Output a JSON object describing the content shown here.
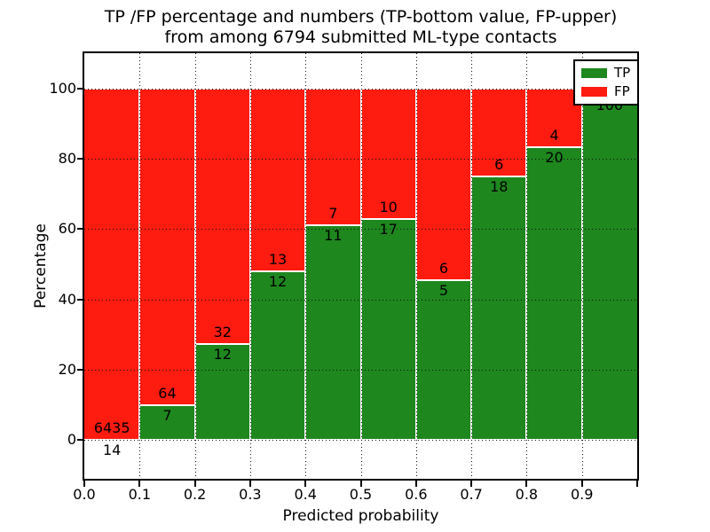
{
  "chart_data": {
    "type": "bar",
    "stacked": true,
    "title_line1": "TP /FP percentage and numbers (TP-bottom value, FP-upper)",
    "title_line2": "from among 6794 submitted ML-type contacts",
    "xlabel": "Predicted probability",
    "ylabel": "Percentage",
    "total_submitted_contacts": 6794,
    "xlim": [
      0.0,
      1.0
    ],
    "ylim": [
      -11,
      110
    ],
    "x_tick_labels": [
      "0.0",
      "0.1",
      "0.2",
      "0.3",
      "0.4",
      "0.5",
      "0.6",
      "0.7",
      "0.8",
      "0.9"
    ],
    "y_tick_values": [
      0,
      20,
      40,
      60,
      80,
      100
    ],
    "grid_style": "dotted",
    "legend_position": "upper-right",
    "colors": {
      "tp": "#1e871e",
      "fp": "#fe1b10"
    },
    "legend": {
      "entries": [
        {
          "label": "TP",
          "series": "tp"
        },
        {
          "label": "FP",
          "series": "fp"
        }
      ]
    },
    "bars": [
      {
        "bin": "0.0-0.1",
        "tp_count_label": "14",
        "fp_count_label": "6435",
        "tp_pct": 0.22,
        "fp_pct": 99.78
      },
      {
        "bin": "0.1-0.2",
        "tp_count_label": "7",
        "fp_count_label": "64",
        "tp_pct": 9.86,
        "fp_pct": 90.14
      },
      {
        "bin": "0.2-0.3",
        "tp_count_label": "12",
        "fp_count_label": "32",
        "tp_pct": 27.27,
        "fp_pct": 72.73
      },
      {
        "bin": "0.3-0.4",
        "tp_count_label": "12",
        "fp_count_label": "13",
        "tp_pct": 48.0,
        "fp_pct": 52.0
      },
      {
        "bin": "0.4-0.5",
        "tp_count_label": "11",
        "fp_count_label": "7",
        "tp_pct": 61.11,
        "fp_pct": 38.89
      },
      {
        "bin": "0.5-0.6",
        "tp_count_label": "17",
        "fp_count_label": "10",
        "tp_pct": 62.96,
        "fp_pct": 37.04
      },
      {
        "bin": "0.6-0.7",
        "tp_count_label": "5",
        "fp_count_label": "6",
        "tp_pct": 45.45,
        "fp_pct": 54.55
      },
      {
        "bin": "0.7-0.8",
        "tp_count_label": "18",
        "fp_count_label": "6",
        "tp_pct": 75.0,
        "fp_pct": 25.0
      },
      {
        "bin": "0.8-0.9",
        "tp_count_label": "20",
        "fp_count_label": "4",
        "tp_pct": 83.33,
        "fp_pct": 16.67
      },
      {
        "bin": "0.9-1.0",
        "tp_count_label": "100",
        "fp_count_label": "",
        "tp_pct": 98.04,
        "fp_pct": 1.96
      }
    ]
  }
}
